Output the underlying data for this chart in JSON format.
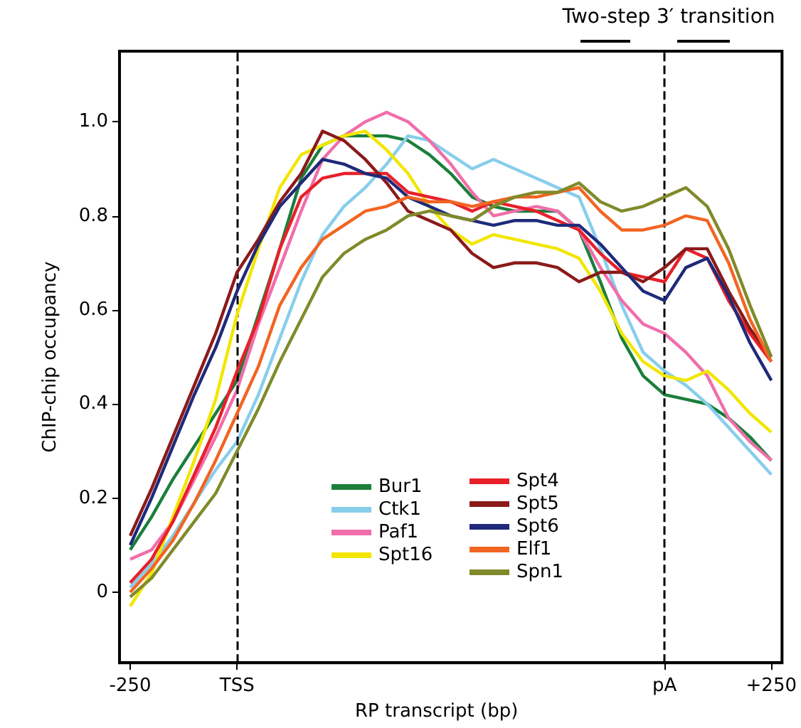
{
  "chart_data": {
    "type": "line",
    "xlabel": "RP transcript (bp)",
    "ylabel": "ChIP-chip occupancy",
    "annotations": [
      "Two-step 3′ transition"
    ],
    "categories": [
      "-250",
      null,
      null,
      null,
      null,
      "TSS",
      null,
      null,
      null,
      null,
      null,
      null,
      null,
      null,
      null,
      null,
      null,
      null,
      null,
      null,
      null,
      null,
      null,
      null,
      null,
      "pA",
      null,
      null,
      null,
      null,
      "+250"
    ],
    "ylim": [
      -0.15,
      1.15
    ],
    "yticks": [
      0,
      0.2,
      0.4,
      0.6,
      0.8,
      {
        "value": 1,
        "label": "1.0"
      }
    ],
    "grid": false,
    "legend": "bottom",
    "marker": "none",
    "line_style": "solid",
    "ref_lines": [
      {
        "axis": "x",
        "value": "TSS",
        "color": "#000000",
        "line_style": "dashed"
      },
      {
        "axis": "x",
        "value": "pA",
        "color": "#000000",
        "line_style": "dashed"
      }
    ],
    "series": [
      {
        "name": "Bur1",
        "color": "#1a7f3a",
        "values": [
          0.09,
          0.16,
          0.24,
          0.31,
          0.38,
          0.45,
          0.59,
          0.73,
          0.88,
          0.95,
          0.97,
          0.97,
          0.97,
          0.96,
          0.93,
          0.89,
          0.84,
          0.82,
          0.81,
          0.81,
          0.81,
          0.77,
          0.66,
          0.54,
          0.46,
          0.42,
          0.41,
          0.4,
          0.37,
          0.33,
          0.28
        ]
      },
      {
        "name": "Ctk1",
        "color": "#87ceeb",
        "values": [
          0.01,
          0.06,
          0.12,
          0.19,
          0.26,
          0.32,
          0.42,
          0.54,
          0.66,
          0.76,
          0.82,
          0.86,
          0.91,
          0.97,
          0.96,
          0.93,
          0.9,
          0.92,
          0.9,
          0.88,
          0.86,
          0.84,
          0.73,
          0.61,
          0.51,
          0.47,
          0.44,
          0.4,
          0.35,
          0.3,
          0.25
        ]
      },
      {
        "name": "Paf1",
        "color": "#f06eaa",
        "values": [
          0.07,
          0.09,
          0.15,
          0.24,
          0.33,
          0.43,
          0.57,
          0.69,
          0.81,
          0.92,
          0.97,
          1.0,
          1.02,
          1.0,
          0.96,
          0.91,
          0.85,
          0.8,
          0.81,
          0.82,
          0.81,
          0.77,
          0.69,
          0.62,
          0.57,
          0.55,
          0.51,
          0.46,
          0.37,
          0.32,
          0.28
        ]
      },
      {
        "name": "Spt16",
        "color": "#f2e600",
        "values": [
          -0.03,
          0.04,
          0.16,
          0.28,
          0.41,
          0.59,
          0.73,
          0.86,
          0.93,
          0.95,
          0.97,
          0.98,
          0.94,
          0.89,
          0.82,
          0.77,
          0.74,
          0.76,
          0.75,
          0.74,
          0.73,
          0.71,
          0.64,
          0.55,
          0.49,
          0.46,
          0.45,
          0.47,
          0.43,
          0.38,
          0.34
        ]
      },
      {
        "name": "Spt4",
        "color": "#e8202a",
        "values": [
          0.02,
          0.07,
          0.15,
          0.25,
          0.35,
          0.47,
          0.58,
          0.73,
          0.84,
          0.88,
          0.89,
          0.89,
          0.89,
          0.85,
          0.84,
          0.83,
          0.81,
          0.83,
          0.82,
          0.81,
          0.79,
          0.77,
          0.72,
          0.68,
          0.67,
          0.66,
          0.73,
          0.71,
          0.62,
          0.55,
          0.49
        ]
      },
      {
        "name": "Spt5",
        "color": "#8b1a1a",
        "values": [
          0.12,
          0.22,
          0.33,
          0.44,
          0.55,
          0.68,
          0.75,
          0.83,
          0.89,
          0.98,
          0.96,
          0.92,
          0.87,
          0.81,
          0.79,
          0.77,
          0.72,
          0.69,
          0.7,
          0.7,
          0.69,
          0.66,
          0.68,
          0.68,
          0.66,
          0.69,
          0.73,
          0.73,
          0.64,
          0.56,
          0.5
        ]
      },
      {
        "name": "Spt6",
        "color": "#1f2a7a",
        "values": [
          0.1,
          0.2,
          0.31,
          0.42,
          0.52,
          0.64,
          0.74,
          0.82,
          0.87,
          0.92,
          0.91,
          0.89,
          0.88,
          0.84,
          0.82,
          0.8,
          0.79,
          0.78,
          0.79,
          0.79,
          0.78,
          0.78,
          0.74,
          0.69,
          0.64,
          0.62,
          0.69,
          0.71,
          0.63,
          0.53,
          0.45
        ]
      },
      {
        "name": "Elf1",
        "color": "#f26522",
        "values": [
          0,
          0.05,
          0.11,
          0.19,
          0.28,
          0.38,
          0.48,
          0.61,
          0.69,
          0.75,
          0.78,
          0.81,
          0.82,
          0.84,
          0.83,
          0.83,
          0.82,
          0.83,
          0.84,
          0.84,
          0.85,
          0.86,
          0.81,
          0.77,
          0.77,
          0.78,
          0.8,
          0.79,
          0.7,
          0.58,
          0.49
        ]
      },
      {
        "name": "Spn1",
        "color": "#808a2a",
        "values": [
          -0.01,
          0.03,
          0.09,
          0.15,
          0.21,
          0.3,
          0.39,
          0.49,
          0.58,
          0.67,
          0.72,
          0.75,
          0.77,
          0.8,
          0.81,
          0.8,
          0.79,
          0.82,
          0.84,
          0.85,
          0.85,
          0.87,
          0.83,
          0.81,
          0.82,
          0.84,
          0.86,
          0.82,
          0.73,
          0.61,
          0.5
        ]
      }
    ]
  }
}
